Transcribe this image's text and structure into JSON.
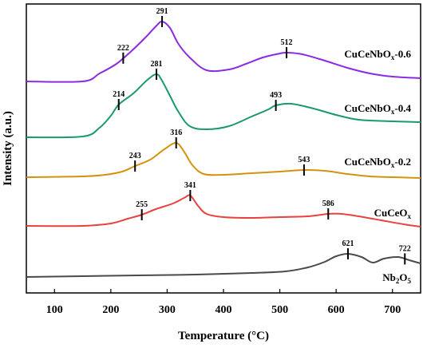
{
  "chart_data": {
    "type": "line",
    "xlabel": "Temperature (°C)",
    "ylabel": "Intensity (a.u.)",
    "xlim": [
      50,
      750
    ],
    "xticks": [
      100,
      200,
      300,
      400,
      500,
      600,
      700
    ],
    "yticks_shown": false,
    "series": [
      {
        "name": "CuCeNbOx-0.6",
        "label_main": "CuCeNbO",
        "label_sub": "x",
        "label_tail": "-0.6",
        "color": "#8a2be2",
        "points": [
          [
            50,
            102
          ],
          [
            150,
            102
          ],
          [
            180,
            92
          ],
          [
            210,
            80
          ],
          [
            235,
            65
          ],
          [
            260,
            48
          ],
          [
            280,
            33
          ],
          [
            291,
            27
          ],
          [
            305,
            35
          ],
          [
            320,
            55
          ],
          [
            340,
            72
          ],
          [
            370,
            88
          ],
          [
            410,
            87
          ],
          [
            440,
            80
          ],
          [
            470,
            72
          ],
          [
            500,
            67
          ],
          [
            512,
            66
          ],
          [
            540,
            68
          ],
          [
            580,
            76
          ],
          [
            620,
            85
          ],
          [
            660,
            92
          ],
          [
            700,
            96
          ],
          [
            750,
            98
          ]
        ],
        "peaks": [
          {
            "x": 222,
            "label": "222"
          },
          {
            "x": 291,
            "label": "291"
          },
          {
            "x": 512,
            "label": "512"
          }
        ]
      },
      {
        "name": "CuCeNbOx-0.4",
        "label_main": "CuCeNbO",
        "label_sub": "x",
        "label_tail": "-0.4",
        "color": "#1a9a6c",
        "points": [
          [
            50,
            172
          ],
          [
            150,
            171
          ],
          [
            180,
            160
          ],
          [
            200,
            145
          ],
          [
            214,
            131
          ],
          [
            240,
            117
          ],
          [
            265,
            100
          ],
          [
            281,
            93
          ],
          [
            290,
            100
          ],
          [
            305,
            120
          ],
          [
            320,
            140
          ],
          [
            340,
            158
          ],
          [
            370,
            162
          ],
          [
            410,
            158
          ],
          [
            450,
            146
          ],
          [
            480,
            137
          ],
          [
            493,
            132
          ],
          [
            520,
            130
          ],
          [
            560,
            136
          ],
          [
            600,
            144
          ],
          [
            640,
            150
          ],
          [
            700,
            152
          ],
          [
            750,
            153
          ]
        ],
        "peaks": [
          {
            "x": 214,
            "label": "214"
          },
          {
            "x": 281,
            "label": "281"
          },
          {
            "x": 493,
            "label": "493"
          }
        ]
      },
      {
        "name": "CuCeNbOx-0.2",
        "label_main": "CuCeNbO",
        "label_sub": "x",
        "label_tail": "-0.2",
        "color": "#d4930d",
        "points": [
          [
            50,
            222
          ],
          [
            150,
            221
          ],
          [
            190,
            219
          ],
          [
            220,
            215
          ],
          [
            243,
            208
          ],
          [
            270,
            200
          ],
          [
            295,
            187
          ],
          [
            316,
            179
          ],
          [
            330,
            190
          ],
          [
            345,
            207
          ],
          [
            365,
            218
          ],
          [
            400,
            219
          ],
          [
            450,
            217
          ],
          [
            500,
            215
          ],
          [
            543,
            213
          ],
          [
            580,
            214
          ],
          [
            620,
            218
          ],
          [
            660,
            221
          ],
          [
            700,
            222
          ],
          [
            750,
            223
          ]
        ],
        "peaks": [
          {
            "x": 243,
            "label": "243"
          },
          {
            "x": 316,
            "label": "316"
          },
          {
            "x": 543,
            "label": "543"
          }
        ]
      },
      {
        "name": "CuCeOx",
        "label_main": "CuCeO",
        "label_sub": "x",
        "label_tail": "",
        "color": "#e8413f",
        "points": [
          [
            50,
            283
          ],
          [
            150,
            283
          ],
          [
            200,
            280
          ],
          [
            230,
            274
          ],
          [
            255,
            269
          ],
          [
            280,
            262
          ],
          [
            310,
            255
          ],
          [
            330,
            248
          ],
          [
            341,
            245
          ],
          [
            355,
            258
          ],
          [
            370,
            268
          ],
          [
            400,
            272
          ],
          [
            450,
            273
          ],
          [
            500,
            272
          ],
          [
            550,
            271
          ],
          [
            586,
            268
          ],
          [
            610,
            268
          ],
          [
            640,
            271
          ],
          [
            680,
            276
          ],
          [
            720,
            281
          ],
          [
            750,
            284
          ]
        ],
        "peaks": [
          {
            "x": 255,
            "label": "255"
          },
          {
            "x": 341,
            "label": "341"
          },
          {
            "x": 586,
            "label": "586"
          }
        ]
      },
      {
        "name": "Nb2O5",
        "label_main": "Nb",
        "label_sub": "2",
        "label_tail": "O",
        "label_sub2": "5",
        "color": "#4a4a4a",
        "points": [
          [
            50,
            347
          ],
          [
            150,
            346
          ],
          [
            250,
            345
          ],
          [
            350,
            344
          ],
          [
            450,
            342
          ],
          [
            510,
            340
          ],
          [
            550,
            335
          ],
          [
            580,
            328
          ],
          [
            600,
            321
          ],
          [
            621,
            318
          ],
          [
            645,
            322
          ],
          [
            665,
            329
          ],
          [
            685,
            324
          ],
          [
            710,
            322
          ],
          [
            730,
            326
          ],
          [
            750,
            330
          ]
        ],
        "peaks": [
          {
            "x": 621,
            "label": "621"
          },
          {
            "x": 722,
            "label": "722"
          }
        ]
      }
    ],
    "grid": false,
    "legend": "none (labels placed beside each curve)"
  }
}
